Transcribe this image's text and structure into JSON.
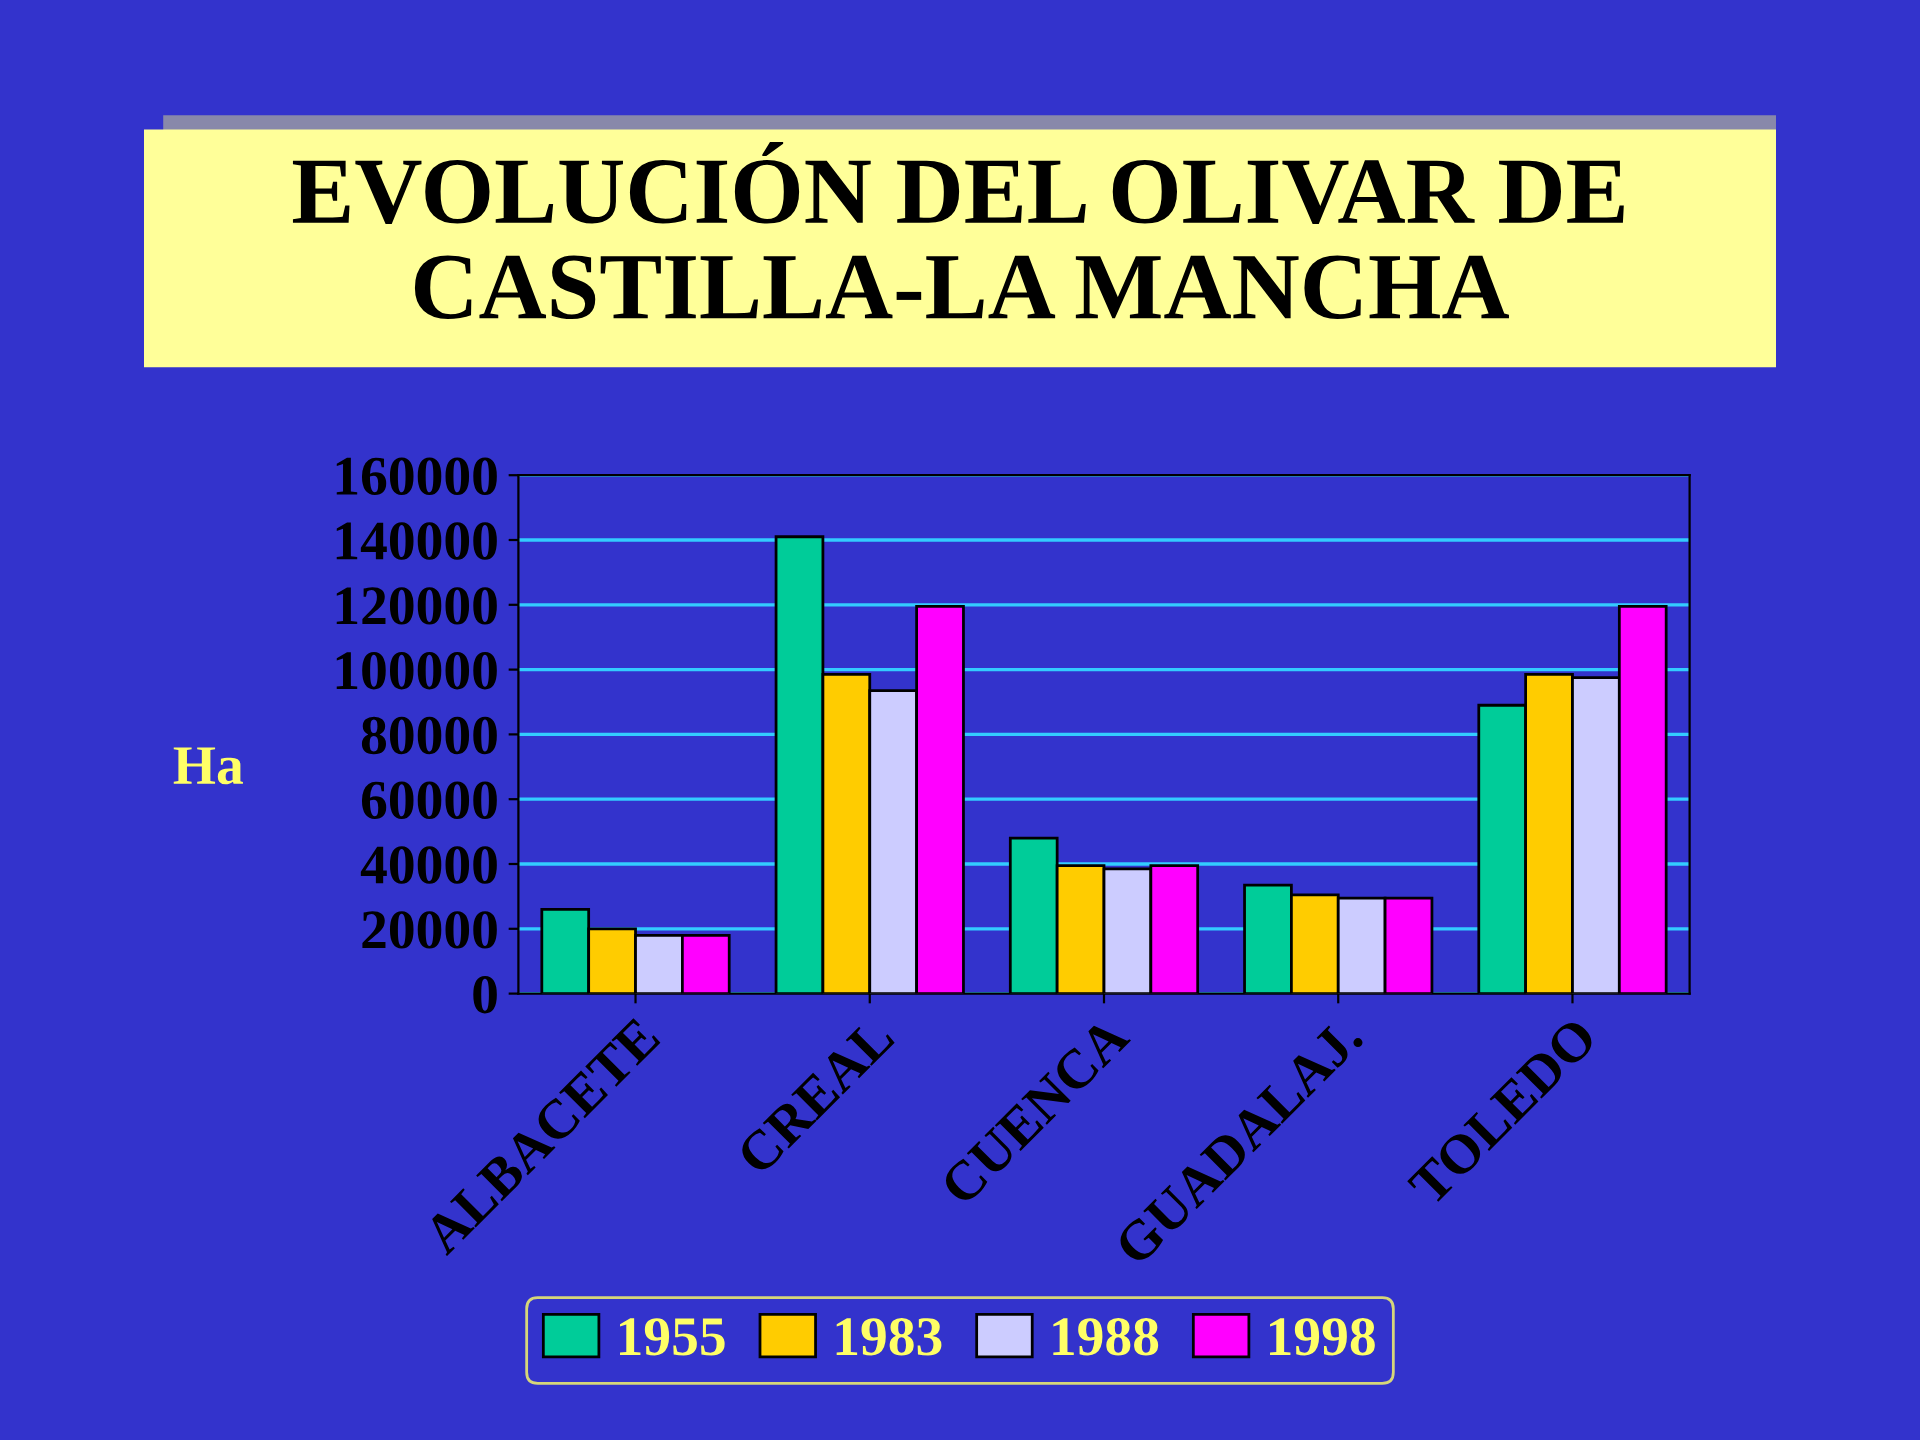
{
  "chart_data": {
    "type": "bar",
    "title": "EVOLUCIÓN DEL OLIVAR DE CASTILLA-LA MANCHA",
    "ylabel": "Ha",
    "categories": [
      "ALBACETE",
      "CREAL",
      "CUENCA",
      "GUADALAJ.",
      "TOLEDO"
    ],
    "series": [
      {
        "name": "1955",
        "color": "#00cc99",
        "values": [
          26000,
          141000,
          48000,
          33500,
          89000
        ]
      },
      {
        "name": "1983",
        "color": "#ffcc00",
        "values": [
          20000,
          98500,
          39500,
          30500,
          98500
        ]
      },
      {
        "name": "1988",
        "color": "#ccccff",
        "values": [
          18000,
          93500,
          38500,
          29500,
          97500
        ]
      },
      {
        "name": "1998",
        "color": "#ff00ff",
        "values": [
          18000,
          119500,
          39500,
          29500,
          119500
        ]
      }
    ],
    "ylim": [
      0,
      160000
    ],
    "yticks": [
      0,
      20000,
      40000,
      60000,
      80000,
      100000,
      120000,
      140000,
      160000
    ],
    "grid": "y",
    "legend": "bottom"
  }
}
